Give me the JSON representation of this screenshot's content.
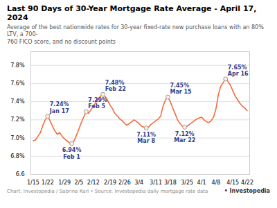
{
  "chart_data": {
    "type": "line",
    "title": "Last 90 Days of 30-Year Mortgage Rate Average - April 17, 2024",
    "subtitle": "Average of the best nationwide rates for 30-year fixed-rate new purchase loans with an 80% LTV, a 700-\n760 FICO score, and no discount points",
    "caption": "Chart: Investopedia / Sabrina Karl • Source: Investopedia daily mortgage rate data",
    "credit": "• Investopedia",
    "categories": [
      "1/15",
      null,
      null,
      null,
      null,
      null,
      "1/22",
      null,
      null,
      null,
      null,
      null,
      null,
      "1/29",
      null,
      null,
      null,
      null,
      null,
      "2/5",
      null,
      null,
      null,
      null,
      null,
      "2/12",
      null,
      null,
      null,
      null,
      null,
      null,
      "2/19",
      null,
      null,
      null,
      null,
      null,
      "2/26",
      null,
      null,
      null,
      null,
      null,
      "3/4",
      null,
      null,
      null,
      null,
      null,
      null,
      "3/11",
      null,
      null,
      null,
      null,
      null,
      "3/18",
      null,
      null,
      null,
      null,
      null,
      null,
      "3/25",
      null,
      null,
      null,
      null,
      null,
      "4/1",
      null,
      null,
      null,
      null,
      null,
      "4/8",
      null,
      null,
      null,
      null,
      null,
      null,
      "4/15",
      null,
      null,
      null,
      null,
      null,
      "4/22"
    ],
    "values": [
      6.97,
      6.98,
      7.02,
      7.06,
      7.14,
      7.2,
      7.24,
      7.19,
      7.13,
      7.08,
      7.04,
      7.06,
      7.02,
      6.99,
      6.97,
      6.95,
      6.94,
      6.97,
      7.03,
      7.1,
      7.17,
      7.23,
      7.29,
      7.27,
      7.31,
      7.35,
      7.39,
      7.43,
      7.46,
      7.48,
      7.45,
      7.41,
      7.36,
      7.32,
      7.27,
      7.24,
      7.21,
      7.19,
      7.16,
      7.14,
      7.16,
      7.18,
      7.2,
      7.18,
      7.16,
      7.13,
      7.12,
      7.11,
      7.12,
      7.15,
      7.17,
      7.19,
      7.21,
      7.24,
      7.35,
      7.42,
      7.45,
      7.4,
      7.33,
      7.27,
      7.2,
      7.16,
      7.13,
      7.12,
      7.13,
      7.15,
      7.17,
      7.19,
      7.21,
      7.22,
      7.23,
      7.2,
      7.18,
      7.17,
      7.19,
      7.23,
      7.32,
      7.48,
      7.57,
      7.61,
      7.65,
      7.62,
      7.58,
      7.52,
      7.46,
      7.42,
      7.38,
      7.35,
      7.33,
      7.3
    ],
    "color": "#f26c3d",
    "ylim": [
      6.6,
      7.95
    ],
    "yticks": [
      6.6,
      {
        "value": 6.8,
        "label": "6.8%"
      },
      {
        "value": 7.0,
        "label": "7.0%"
      },
      {
        "value": 7.2,
        "label": "7.2%"
      },
      {
        "value": 7.4,
        "label": "7.4%"
      },
      {
        "value": 7.6,
        "label": "7.6%"
      },
      {
        "value": 7.8,
        "label": "7.8%"
      }
    ],
    "grid": true,
    "annotations": [
      {
        "x": 6,
        "y": 7.24,
        "label": "7.24%\nJan 17",
        "color": "#2e3f8f"
      },
      {
        "x": 16,
        "y": 6.94,
        "label": "6.94%\nFeb 1",
        "color": "#2e3f8f"
      },
      {
        "x": 22,
        "y": 7.29,
        "label": "7.29%\nFeb 5",
        "color": "#2e3f8f"
      },
      {
        "x": 29,
        "y": 7.48,
        "label": "7.48%\nFeb 22",
        "color": "#2e3f8f"
      },
      {
        "x": 47,
        "y": 7.11,
        "label": "7.11%\nMar 8",
        "color": "#2e3f8f"
      },
      {
        "x": 56,
        "y": 7.45,
        "label": "7.45%\nMar 15",
        "color": "#2e3f8f"
      },
      {
        "x": 63,
        "y": 7.12,
        "label": "7.12%\nMar 22",
        "color": "#2e3f8f"
      },
      {
        "x": 80,
        "y": 7.65,
        "label": "7.65%\nApr 16",
        "color": "#2e3f8f"
      }
    ]
  }
}
